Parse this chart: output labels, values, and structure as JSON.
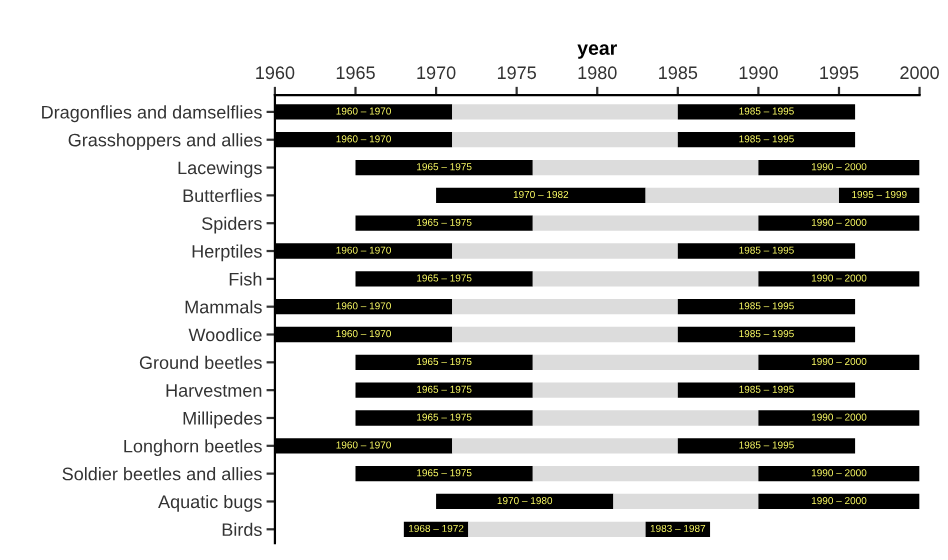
{
  "chart_data": {
    "type": "bar",
    "orientation": "horizontal",
    "xlabel": "year",
    "categories": [
      "Dragonflies and damselflies",
      "Grasshoppers and allies",
      "Lacewings",
      "Butterflies",
      "Spiders",
      "Herptiles",
      "Fish",
      "Mammals",
      "Woodlice",
      "Ground beetles",
      "Harvestmen",
      "Millipedes",
      "Longhorn beetles",
      "Soldier beetles and allies",
      "Aquatic bugs",
      "Birds"
    ],
    "series": [
      {
        "color": "#000000",
        "base": [
          1960,
          1960,
          1965,
          1970,
          1965,
          1960,
          1965,
          1960,
          1960,
          1965,
          1965,
          1965,
          1960,
          1965,
          1970,
          1968
        ],
        "values": [
          11,
          11,
          11,
          13,
          11,
          11,
          11,
          11,
          11,
          11,
          11,
          11,
          11,
          11,
          11,
          4
        ]
      },
      {
        "color": "#dcdcdc",
        "base": [
          1971,
          1971,
          1976,
          1983,
          1976,
          1971,
          1976,
          1971,
          1971,
          1976,
          1976,
          1976,
          1971,
          1976,
          1981,
          1972
        ],
        "values": [
          14,
          14,
          14,
          12,
          14,
          14,
          14,
          14,
          14,
          14,
          9,
          14,
          14,
          14,
          9,
          11
        ]
      },
      {
        "color": "#000000",
        "base": [
          1985,
          1985,
          1990,
          1995,
          1990,
          1985,
          1990,
          1985,
          1985,
          1990,
          1985,
          1990,
          1985,
          1990,
          1990,
          1983
        ],
        "values": [
          11,
          11,
          10,
          5,
          10,
          11,
          10,
          11,
          11,
          10,
          11,
          10,
          11,
          10,
          10,
          4
        ]
      }
    ],
    "annotations": [
      {
        "text": "1960 – 1970",
        "x": 1965.5,
        "y": "Dragonflies and damselflies"
      },
      {
        "text": "1985 – 1995",
        "x": 1990.5,
        "y": "Dragonflies and damselflies"
      },
      {
        "text": "1960 – 1970",
        "x": 1965.5,
        "y": "Grasshoppers and allies"
      },
      {
        "text": "1985 – 1995",
        "x": 1990.5,
        "y": "Grasshoppers and allies"
      },
      {
        "text": "1965 – 1975",
        "x": 1970.5,
        "y": "Lacewings"
      },
      {
        "text": "1990 – 2000",
        "x": 1995,
        "y": "Lacewings"
      },
      {
        "text": "1970 – 1982",
        "x": 1976.5,
        "y": "Butterflies"
      },
      {
        "text": "1995 – 1999",
        "x": 1997.5,
        "y": "Butterflies"
      },
      {
        "text": "1965 – 1975",
        "x": 1970.5,
        "y": "Spiders"
      },
      {
        "text": "1990 – 2000",
        "x": 1995,
        "y": "Spiders"
      },
      {
        "text": "1960 – 1970",
        "x": 1965.5,
        "y": "Herptiles"
      },
      {
        "text": "1985 – 1995",
        "x": 1990.5,
        "y": "Herptiles"
      },
      {
        "text": "1965 – 1975",
        "x": 1970.5,
        "y": "Fish"
      },
      {
        "text": "1990 – 2000",
        "x": 1995,
        "y": "Fish"
      },
      {
        "text": "1960 – 1970",
        "x": 1965.5,
        "y": "Mammals"
      },
      {
        "text": "1985 – 1995",
        "x": 1990.5,
        "y": "Mammals"
      },
      {
        "text": "1960 – 1970",
        "x": 1965.5,
        "y": "Woodlice"
      },
      {
        "text": "1985 – 1995",
        "x": 1990.5,
        "y": "Woodlice"
      },
      {
        "text": "1965 – 1975",
        "x": 1970.5,
        "y": "Ground beetles"
      },
      {
        "text": "1990 – 2000",
        "x": 1995,
        "y": "Ground beetles"
      },
      {
        "text": "1965 – 1975",
        "x": 1970.5,
        "y": "Harvestmen"
      },
      {
        "text": "1985 – 1995",
        "x": 1990.5,
        "y": "Harvestmen"
      },
      {
        "text": "1965 – 1975",
        "x": 1970.5,
        "y": "Millipedes"
      },
      {
        "text": "1990 – 2000",
        "x": 1995,
        "y": "Millipedes"
      },
      {
        "text": "1960 – 1970",
        "x": 1965.5,
        "y": "Longhorn beetles"
      },
      {
        "text": "1985 – 1995",
        "x": 1990.5,
        "y": "Longhorn beetles"
      },
      {
        "text": "1965 – 1975",
        "x": 1970.5,
        "y": "Soldier beetles and allies"
      },
      {
        "text": "1990 – 2000",
        "x": 1995,
        "y": "Soldier beetles and allies"
      },
      {
        "text": "1970 – 1980",
        "x": 1975.5,
        "y": "Aquatic bugs"
      },
      {
        "text": "1990 – 2000",
        "x": 1995,
        "y": "Aquatic bugs"
      },
      {
        "text": "1968 – 1972",
        "x": 1970,
        "y": "Birds"
      },
      {
        "text": "1983 – 1987",
        "x": 1985,
        "y": "Birds"
      }
    ],
    "xlim": [
      1960,
      2000
    ],
    "xticks": [
      1960,
      1965,
      1970,
      1975,
      1980,
      1985,
      1990,
      1995,
      2000
    ],
    "grid": false,
    "legend": false
  }
}
